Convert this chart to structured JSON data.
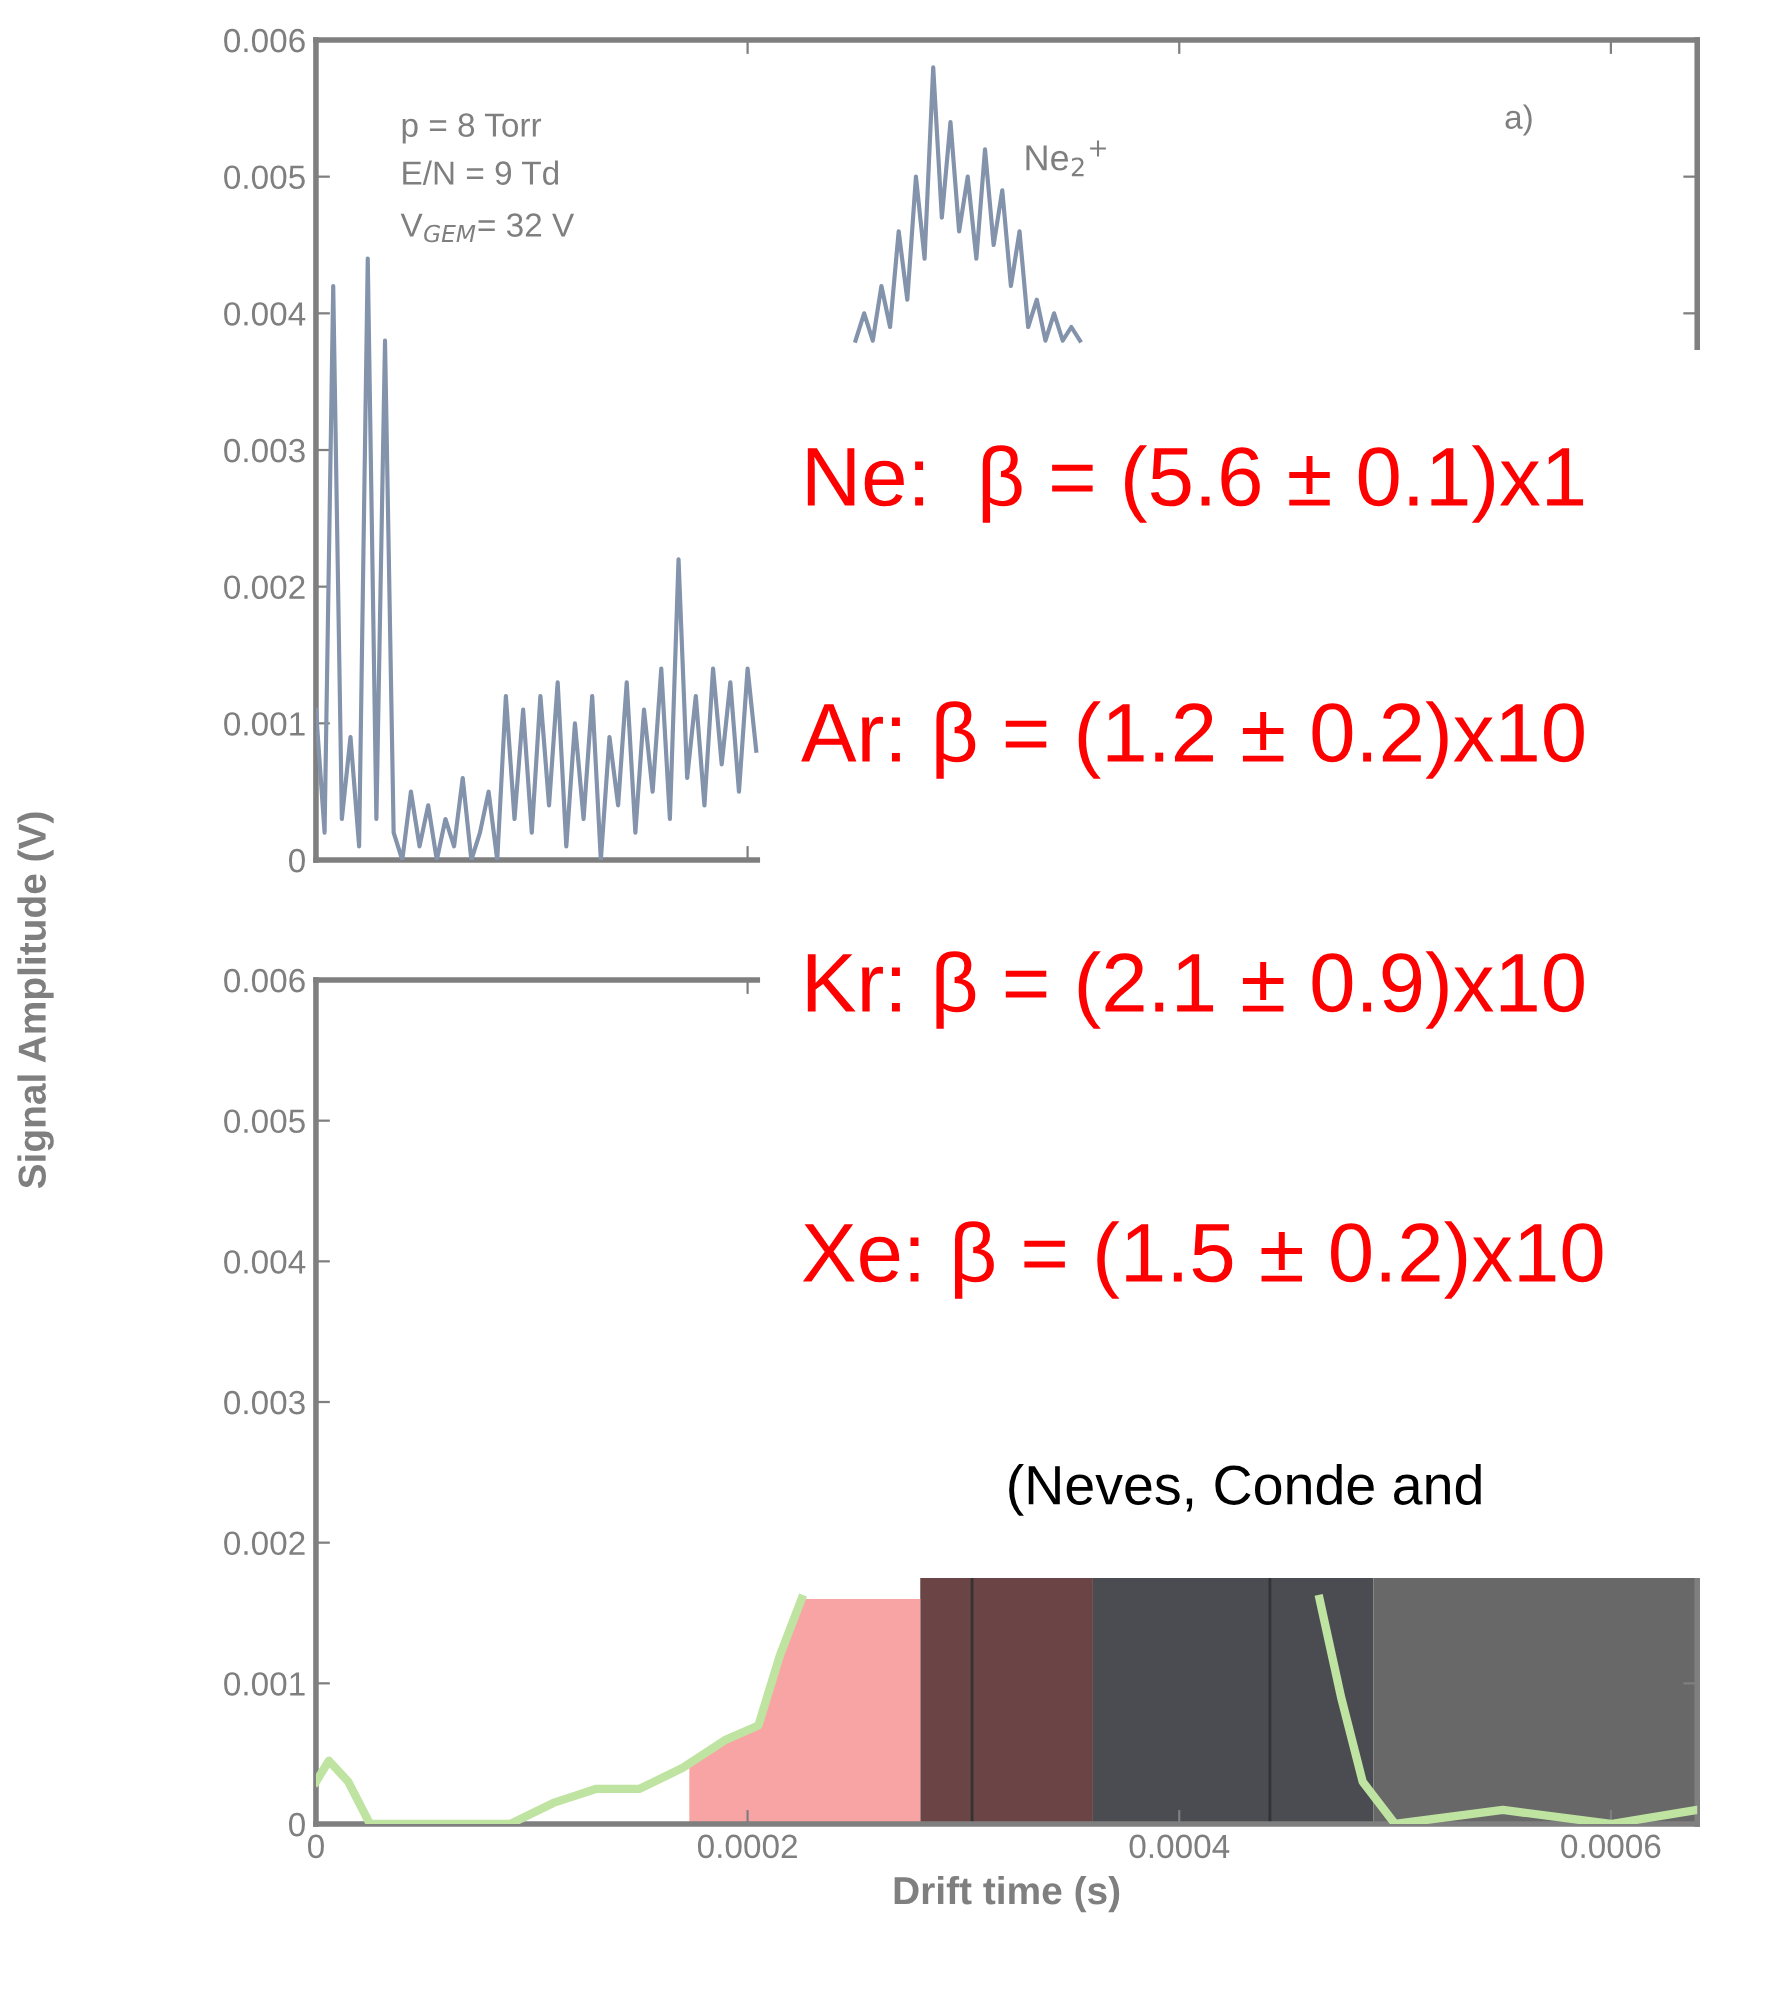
{
  "chart_data": [
    {
      "type": "line",
      "ylabel": "Signal Amplitude (V)",
      "xlim": [
        0,
        0.00064
      ],
      "ylim": [
        0,
        0.006
      ],
      "xticks": [
        0,
        0.0002,
        0.0004,
        0.0006
      ],
      "yticks": [
        0,
        0.001,
        0.002,
        0.003,
        0.004,
        0.005,
        0.006
      ],
      "tick_labels": "y",
      "grid": false,
      "legend": false,
      "annotations": [
        "p = 8 Torr",
        "E/N = 9 Td",
        "V$_{GEM}$= 32 V",
        "Ne$_{2}$$^{+}$",
        "a)",
        "Ne:  β = (5.6 ± 0.1)x1",
        "Ar: β = (1.2 ± 0.2)x10",
        "Kr: β = (2.1 ± 0.9)x10",
        "Xe: β = (1.5 ± 0.2)x10",
        "(Neves, Conde and"
      ],
      "series": [
        {
          "color": "#8393ab",
          "x": [
            0,
            4e-06,
            8e-06,
            1.2e-05,
            1.6e-05,
            2e-05,
            2.4e-05,
            2.8e-05,
            3.2e-05,
            3.6e-05,
            4e-05,
            4.4e-05,
            4.8e-05,
            5.2e-05,
            5.6e-05,
            6e-05,
            6.4e-05,
            6.8e-05,
            7.2e-05,
            7.6e-05,
            8e-05,
            8.4e-05,
            8.8e-05,
            9.2e-05,
            9.6e-05,
            0.0001,
            0.000104,
            0.000108,
            0.000112,
            0.000116,
            0.00012,
            0.000124,
            0.000128,
            0.000132,
            0.000136,
            0.00014,
            0.000144,
            0.000148,
            0.000152,
            0.000156,
            0.00016,
            0.000164,
            0.000168,
            0.000172,
            0.000176,
            0.00018,
            0.000184,
            0.000188,
            0.000192,
            0.000196,
            0.0002,
            0.000204,
            0.000227,
            0.00025,
            0.000254,
            0.000258,
            0.000262,
            0.000266,
            0.00027,
            0.000274,
            0.000278,
            0.000282,
            0.000286,
            0.00029,
            0.000294,
            0.000298,
            0.000302,
            0.000306,
            0.00031,
            0.000314,
            0.000318,
            0.000322,
            0.000326,
            0.00033,
            0.000334,
            0.000338,
            0.000342,
            0.000346,
            0.00035,
            0.000354
          ],
          "values": [
            0.0011,
            0.0002,
            0.0042,
            0.0003,
            0.0009,
            0.0001,
            0.0044,
            0.0003,
            0.0038,
            0.0002,
            0.0,
            0.0005,
            0.0001,
            0.0004,
            0.0,
            0.0003,
            0.0001,
            0.0006,
            0.0,
            0.0002,
            0.0005,
            0.0,
            0.0012,
            0.0003,
            0.0011,
            0.0002,
            0.0012,
            0.0004,
            0.0013,
            0.0001,
            0.001,
            0.0003,
            0.0012,
            0.0,
            0.0009,
            0.0004,
            0.0013,
            0.0002,
            0.0011,
            0.0005,
            0.0014,
            0.0003,
            0.0022,
            0.0006,
            0.0012,
            0.0004,
            0.0014,
            0.0007,
            0.0013,
            0.0005,
            0.0014,
            0.0008,
            null,
            0.0038,
            0.004,
            0.0038,
            0.0042,
            0.0039,
            0.0046,
            0.0041,
            0.005,
            0.0044,
            0.0058,
            0.0047,
            0.0054,
            0.0046,
            0.005,
            0.0044,
            0.0052,
            0.0045,
            0.0049,
            0.0042,
            0.0046,
            0.0039,
            0.0041,
            0.0038,
            0.004,
            0.0038,
            0.0039,
            0.0038
          ]
        }
      ]
    },
    {
      "type": "line",
      "xlabel": "Drift time (s)",
      "xlim": [
        0,
        0.00064
      ],
      "ylim": [
        0,
        0.006
      ],
      "xticks": [
        0,
        0.0002,
        0.0004,
        0.0006
      ],
      "yticks": [
        0,
        0.001,
        0.002,
        0.003,
        0.004,
        0.005,
        0.006
      ],
      "grid": false,
      "legend": false,
      "bands": [
        {
          "axis": "x",
          "from": 0.00028,
          "to": 0.00036,
          "color": "#6b4545"
        },
        {
          "axis": "x",
          "from": 0.00036,
          "to": 0.00049,
          "color": "#4b4c52"
        },
        {
          "axis": "x",
          "from": 0.00049,
          "to": 0.00064,
          "color": "#686868"
        }
      ],
      "ref_lines": [
        {
          "axis": "x",
          "value": 0.000304,
          "color": "#333333",
          "line_style": "solid"
        },
        {
          "axis": "x",
          "value": 0.000442,
          "color": "#333333",
          "line_style": "solid"
        }
      ],
      "series": [
        {
          "type": "area",
          "color": "#f8a4a4",
          "x": [
            0.000173,
            0.00019,
            0.000205,
            0.000215,
            0.000225,
            0.00028
          ],
          "values": [
            0.0004,
            0.0006,
            0.0007,
            0.0012,
            0.0016,
            0.0016
          ]
        },
        {
          "color": "#bfe3a0",
          "x": [
            0,
            6e-06,
            1.5e-05,
            2.5e-05,
            9e-05,
            0.00011,
            0.00013,
            0.00015,
            0.00017,
            0.00019,
            0.000205,
            0.000215,
            0.000225,
            0.00023,
            0.00046,
            0.000465,
            0.000475,
            0.000485,
            0.0005,
            0.00055,
            0.0006,
            0.00064
          ],
          "values": [
            0.0003,
            0.00045,
            0.0003,
            0.0,
            0.0,
            0.00015,
            0.00025,
            0.00025,
            0.0004,
            0.0006,
            0.0007,
            0.0012,
            0.0016,
            null,
            null,
            0.0016,
            0.0009,
            0.0003,
            0.0,
            0.0001,
            0.0,
            0.0001
          ]
        }
      ]
    }
  ]
}
